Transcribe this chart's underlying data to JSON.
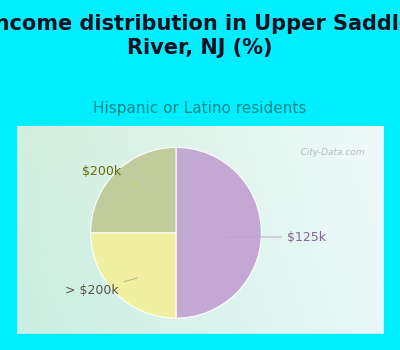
{
  "title": "Income distribution in Upper Saddle\nRiver, NJ (%)",
  "subtitle": "Hispanic or Latino residents",
  "slices": [
    50.0,
    25.0,
    25.0
  ],
  "labels": [
    "$125k",
    "$200k",
    "> $200k"
  ],
  "slice_colors": [
    "#c4a8d4",
    "#f0f0a0",
    "#c0cc9c"
  ],
  "startangle": 90,
  "bg_top_color": "#00eeff",
  "bg_chart_tl": "#c8eee0",
  "bg_chart_br": "#eaf8f8",
  "title_fontsize": 15,
  "subtitle_fontsize": 11,
  "label_fontsize": 9,
  "label_colors": [
    "#8860a0",
    "#666600",
    "#555544"
  ],
  "line_colors": [
    "#c0a0d0",
    "#d0d060",
    "#a8b888"
  ],
  "watermark": "   City-Data.com",
  "watermark_color": "#aaaaaa"
}
